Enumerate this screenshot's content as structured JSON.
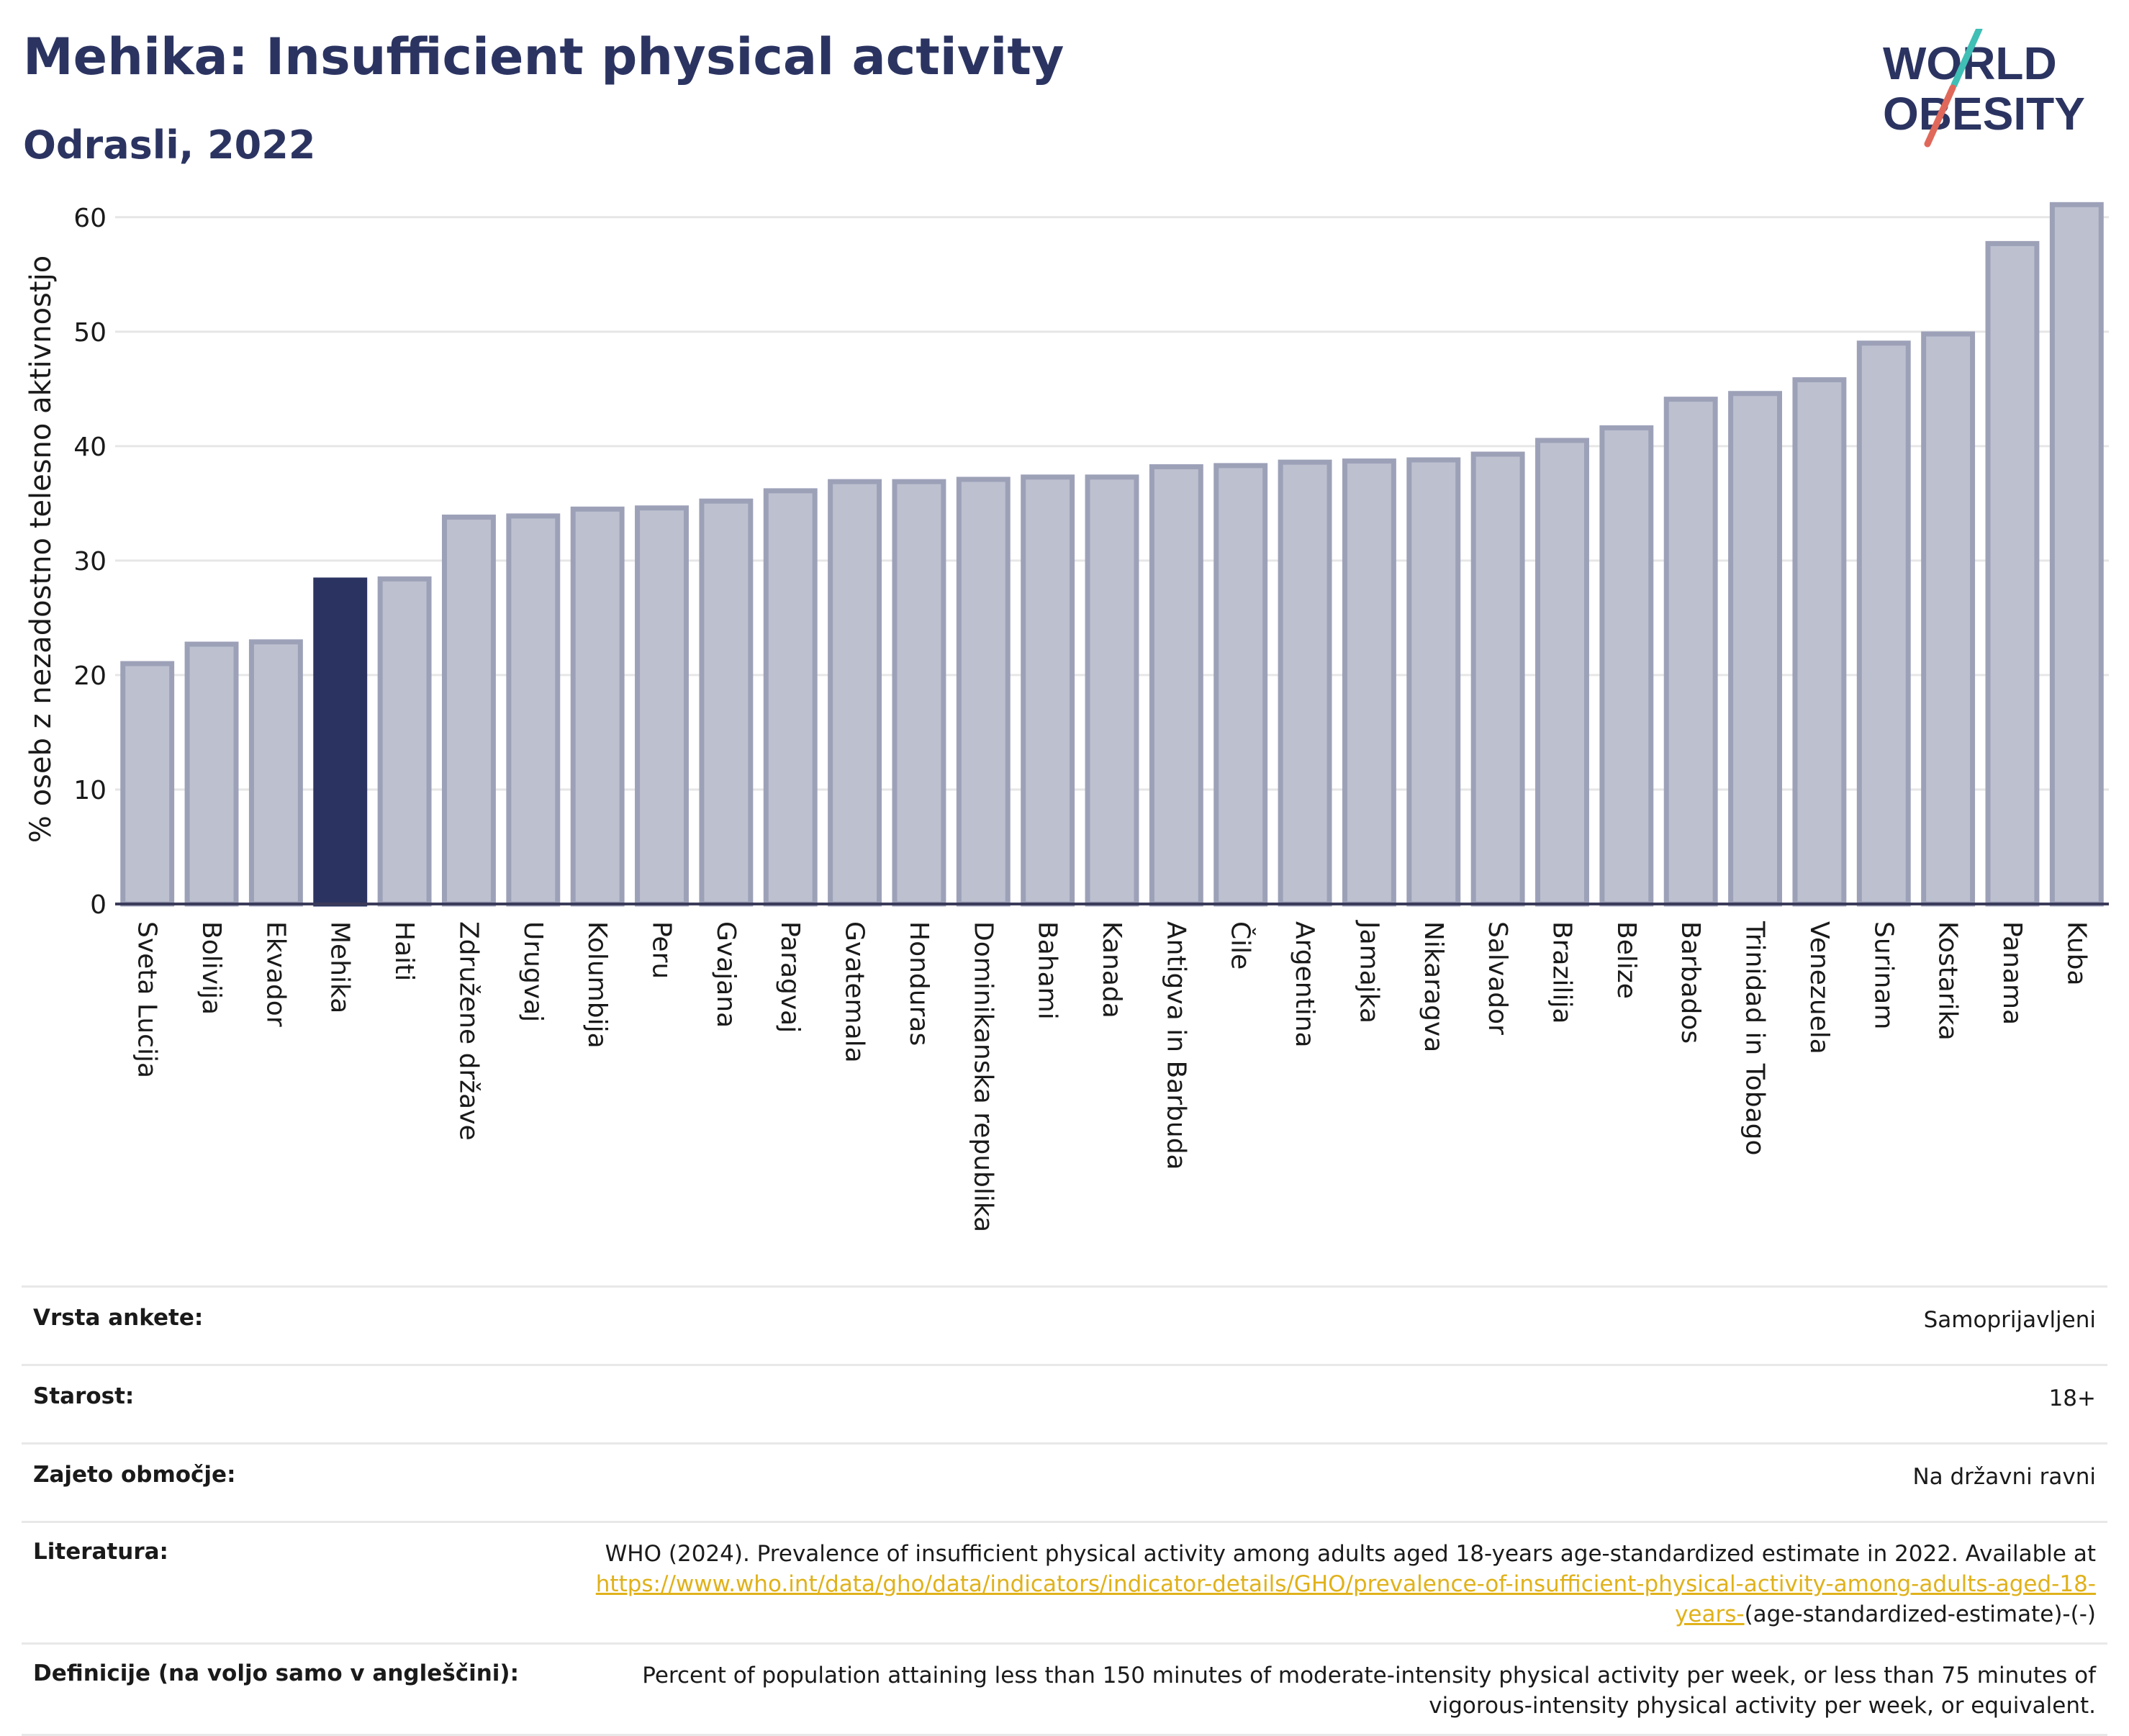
{
  "header": {
    "title": "Mehika: Insufficient physical activity",
    "subtitle": "Odrasli, 2022"
  },
  "logo": {
    "line1": "WORLD",
    "line2": "OBESITY",
    "colors": {
      "text": "#2b3461",
      "slash_teal": "#3fbfb5",
      "slash_red": "#e0685a"
    }
  },
  "colors": {
    "bar_default": "#bdc0cf",
    "bar_default_border": "#9da1b8",
    "bar_highlight": "#2b3461",
    "grid": "#e6e6e6",
    "axis": "#3a3a5a"
  },
  "chart_data": {
    "type": "bar",
    "ylabel": "% oseb z nezadostno telesno aktivnostjo",
    "ylim": [
      0,
      62
    ],
    "yticks": [
      0,
      10,
      20,
      30,
      40,
      50,
      60
    ],
    "grid": true,
    "highlight": "Mehika",
    "categories": [
      "Sveta Lucija",
      "Bolivija",
      "Ekvador",
      "Mehika",
      "Haiti",
      "Združene države",
      "Urugvaj",
      "Kolumbija",
      "Peru",
      "Gvajana",
      "Paragvaj",
      "Gvatemala",
      "Honduras",
      "Dominikanska republika",
      "Bahami",
      "Kanada",
      "Antigva in Barbuda",
      "Čile",
      "Argentina",
      "Jamajka",
      "Nikaragva",
      "Salvador",
      "Brazilija",
      "Belize",
      "Barbados",
      "Trinidad in Tobago",
      "Venezuela",
      "Surinam",
      "Kostarika",
      "Panama",
      "Kuba"
    ],
    "values": [
      21.0,
      22.7,
      22.9,
      28.3,
      28.4,
      33.8,
      33.9,
      34.5,
      34.6,
      35.2,
      36.1,
      36.9,
      36.9,
      37.1,
      37.3,
      37.3,
      38.2,
      38.3,
      38.6,
      38.7,
      38.8,
      39.3,
      40.5,
      41.6,
      44.1,
      44.6,
      45.8,
      49.0,
      49.8,
      57.7,
      61.1
    ]
  },
  "meta": {
    "rows": [
      {
        "key": "Vrsta ankete:",
        "value": "Samoprijavljeni"
      },
      {
        "key": "Starost:",
        "value": "18+"
      },
      {
        "key": "Zajeto območje:",
        "value": "Na državni ravni"
      },
      {
        "key": "Literatura:",
        "value_prefix": "WHO (2024). Prevalence of insufficient physical activity among adults aged 18-years age-standardized estimate in 2022. Available at",
        "link": "https://www.who.int/data/gho/data/indicators/indicator-details/GHO/prevalence-of-insufficient-physical-activity-among-adults-aged-18-years-",
        "value_suffix": "(age-standardized-estimate)-(-)"
      },
      {
        "key": "Definicije (na voljo samo v angleščini):",
        "value": "Percent of population attaining less than 150 minutes of moderate-intensity physical activity per week, or less than 75 minutes of vigorous-intensity physical activity per week, or equivalent."
      }
    ]
  }
}
